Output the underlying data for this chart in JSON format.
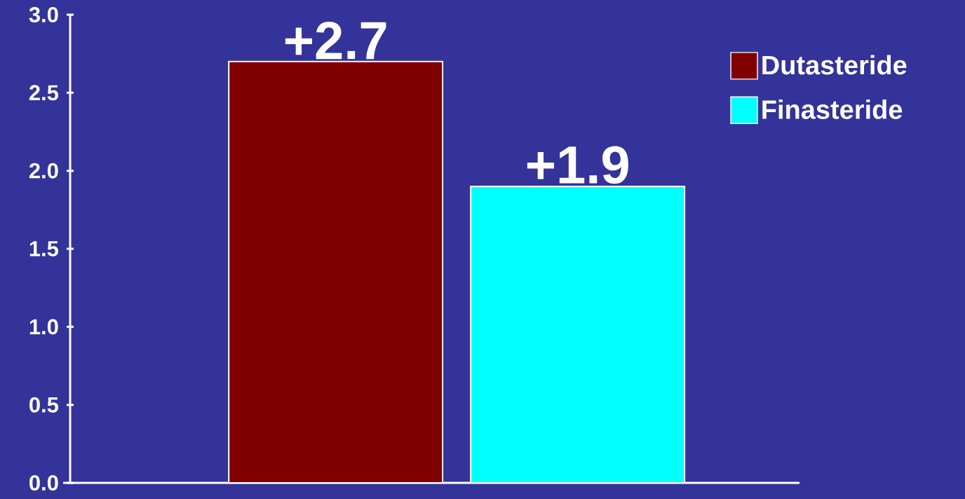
{
  "chart_data": {
    "type": "bar",
    "categories": [
      null
    ],
    "series": [
      {
        "name": "Dutasteride",
        "color": "#800000",
        "values": [
          2.7
        ],
        "value_labels": [
          "+2.7"
        ]
      },
      {
        "name": "Finasteride",
        "color": "#00ffff",
        "values": [
          1.9
        ],
        "value_labels": [
          "+1.9"
        ]
      }
    ],
    "ylim": [
      0,
      3
    ],
    "yticks": [
      {
        "value": 0,
        "label": "0.0"
      },
      {
        "value": 0.5,
        "label": "0.5"
      },
      {
        "value": 1,
        "label": "1.0"
      },
      {
        "value": 1.5,
        "label": "1.5"
      },
      {
        "value": 2,
        "label": "2.0"
      },
      {
        "value": 2.5,
        "label": "2.5"
      },
      {
        "value": 3,
        "label": "3.0"
      }
    ],
    "legend": "top right",
    "grid": false
  }
}
